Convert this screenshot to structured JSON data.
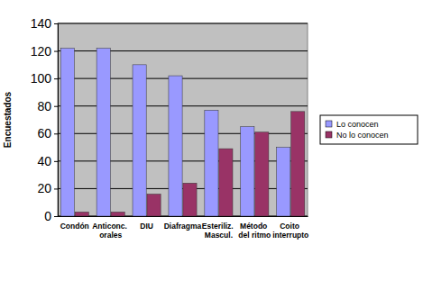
{
  "chart_data": {
    "type": "bar",
    "y_label": "Encuestados",
    "categories": [
      "Condón",
      "Anticonc. orales",
      "DIU",
      "Diafragma",
      "Esteriliz. Mascul.",
      "Método del ritmo",
      "Coito interrupto"
    ],
    "series": [
      {
        "name": "Lo conocen",
        "color": "#9999ff",
        "values": [
          122,
          122,
          110,
          102,
          77,
          65,
          50
        ]
      },
      {
        "name": "No lo conocen",
        "color": "#993366",
        "values": [
          3,
          3,
          16,
          24,
          49,
          61,
          76
        ]
      }
    ],
    "ylim": [
      0,
      140
    ],
    "yticks": [
      0,
      20,
      40,
      60,
      80,
      100,
      120,
      140
    ],
    "grid": true,
    "legend": "right"
  }
}
